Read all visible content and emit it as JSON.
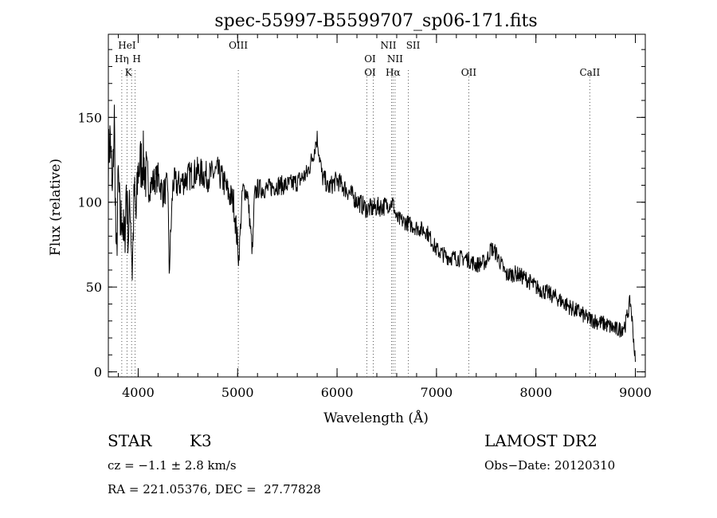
{
  "chart_data": {
    "type": "line",
    "title": "spec-55997-B5599707_sp06-171.fits",
    "xlabel": "Wavelength (Å)",
    "ylabel": "Flux (relative)",
    "xlim": [
      3700,
      9100
    ],
    "ylim": [
      -3,
      199
    ],
    "x_ticks": [
      4000,
      5000,
      6000,
      7000,
      8000,
      9000
    ],
    "y_ticks": [
      0,
      50,
      100,
      150
    ],
    "x_minor_step": 200,
    "y_minor_step": 10,
    "grid": false,
    "line_color": "#000000",
    "spectrum": {
      "x": [
        3700,
        3720,
        3740,
        3760,
        3780,
        3800,
        3820,
        3840,
        3860,
        3880,
        3900,
        3920,
        3940,
        3960,
        3980,
        4000,
        4050,
        4100,
        4150,
        4200,
        4250,
        4300,
        4310,
        4350,
        4400,
        4500,
        4600,
        4700,
        4800,
        4860,
        4900,
        4960,
        5000,
        5010,
        5050,
        5100,
        5150,
        5170,
        5200,
        5300,
        5400,
        5500,
        5600,
        5700,
        5750,
        5800,
        5850,
        5890,
        5900,
        6000,
        6100,
        6200,
        6300,
        6400,
        6500,
        6560,
        6600,
        6700,
        6800,
        6900,
        7000,
        7100,
        7200,
        7300,
        7400,
        7500,
        7550,
        7600,
        7700,
        7800,
        7900,
        8000,
        8100,
        8200,
        8300,
        8400,
        8450,
        8500,
        8600,
        8700,
        8800,
        8850,
        8900,
        8950,
        8980,
        9000
      ],
      "y": [
        125,
        140,
        100,
        150,
        60,
        115,
        85,
        95,
        70,
        110,
        80,
        100,
        60,
        105,
        90,
        120,
        125,
        108,
        112,
        115,
        105,
        110,
        57,
        112,
        110,
        115,
        118,
        115,
        118,
        112,
        106,
        100,
        75,
        65,
        108,
        105,
        70,
        104,
        108,
        108,
        110,
        110,
        112,
        117,
        126,
        138,
        115,
        112,
        108,
        113,
        107,
        101,
        96,
        97,
        98,
        100,
        90,
        88,
        85,
        83,
        72,
        68,
        67,
        67,
        63,
        65,
        73,
        70,
        57,
        58,
        55,
        50,
        47,
        44,
        40,
        36,
        35,
        32,
        30,
        28,
        25,
        25,
        28,
        42,
        22,
        5
      ]
    },
    "lines": [
      {
        "name": "HeI",
        "x": 3888
      },
      {
        "name": "Hη",
        "x": 3835
      },
      {
        "name": "H",
        "x": 3969
      },
      {
        "name": "K",
        "x": 3934
      },
      {
        "name": "OIII",
        "x": 5007
      },
      {
        "name": "OI",
        "x": 6300
      },
      {
        "name": "OI",
        "x": 6364
      },
      {
        "name": "NII",
        "x": 6548
      },
      {
        "name": "NII",
        "x": 6583
      },
      {
        "name": "Hα",
        "x": 6563
      },
      {
        "name": "SII",
        "x": 6717
      },
      {
        "name": "OII",
        "x": 7325
      },
      {
        "name": "CaII",
        "x": 8542
      }
    ]
  },
  "info": {
    "class_label": "STAR",
    "subclass": "K3",
    "survey": "LAMOST DR2",
    "velocity": "cz = −1.1 ± 2.8 km/s",
    "obs_date": "Obs−Date: 20120310",
    "coords": "RA = 221.05376, DEC =  27.77828"
  }
}
